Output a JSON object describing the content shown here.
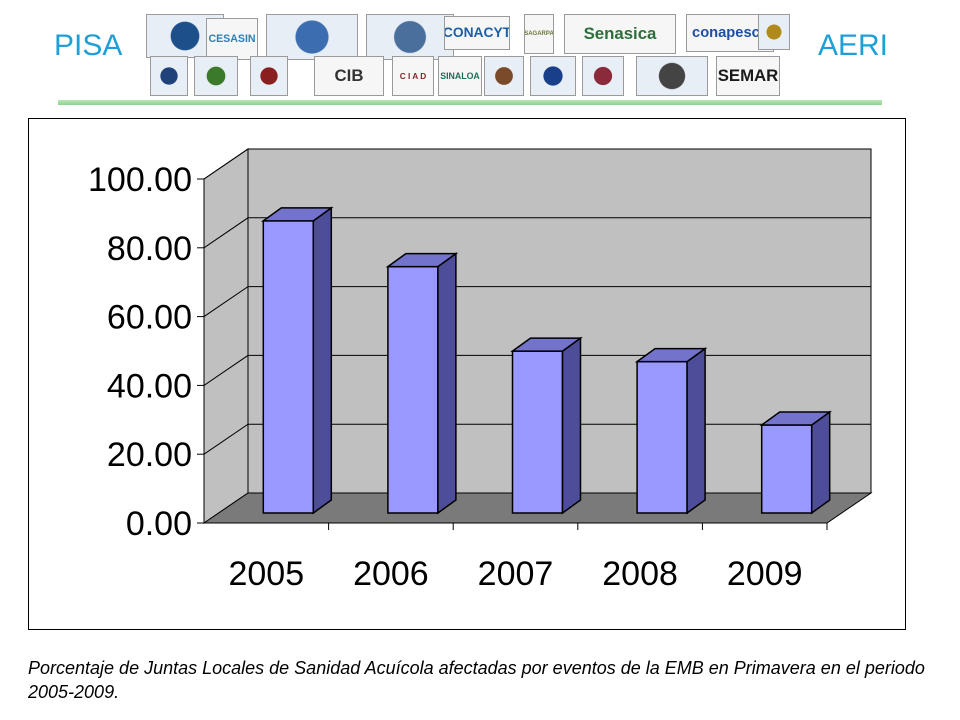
{
  "header": {
    "left_label": "PISA",
    "right_label": "AERI",
    "logos_row1": [
      {
        "name": "globe-swirl-logo",
        "text": ""
      },
      {
        "name": "cesasin-logo",
        "text": "CESASIN"
      },
      {
        "name": "comite-nayarit-logo",
        "text": ""
      },
      {
        "name": "comite-bcs-logo",
        "text": ""
      },
      {
        "name": "conacyt-logo",
        "text": "CONACYT"
      },
      {
        "name": "sagarpa-logo",
        "text": "SAGARPA"
      },
      {
        "name": "senasica-logo",
        "text": "Senasica"
      },
      {
        "name": "conapesca-logo",
        "text": "conapesca"
      },
      {
        "name": "emblem-logo",
        "text": ""
      }
    ],
    "logos_row2": [
      {
        "name": "unam-logo",
        "text": ""
      },
      {
        "name": "crest-green-logo",
        "text": ""
      },
      {
        "name": "crest-red-logo",
        "text": ""
      },
      {
        "name": "cib-logo",
        "text": "CIB"
      },
      {
        "name": "ciad-logo",
        "text": "C I A D"
      },
      {
        "name": "sinaloa-logo",
        "text": "SINALOA"
      },
      {
        "name": "figure-logo",
        "text": ""
      },
      {
        "name": "round-seal-logo",
        "text": ""
      },
      {
        "name": "round-crest-logo",
        "text": ""
      },
      {
        "name": "diagnostic-network-logo",
        "text": ""
      },
      {
        "name": "semar-logo",
        "text": "SEMAR"
      }
    ]
  },
  "chart_data": {
    "type": "bar",
    "categories": [
      "2005",
      "2006",
      "2007",
      "2008",
      "2009"
    ],
    "values": [
      83.0,
      70.0,
      46.0,
      43.0,
      25.0
    ],
    "ylim": [
      0,
      100
    ],
    "yticks": [
      "0.00",
      "20.00",
      "40.00",
      "60.00",
      "80.00",
      "100.00"
    ],
    "grid": true,
    "legend": "none",
    "style": "3d",
    "colors": {
      "bar_front": "#9999ff",
      "bar_side": "#4d4d99",
      "bar_top": "#7373cc",
      "wall": "#c0c0c0",
      "floor": "#7a7a7a",
      "outline": "#000000"
    }
  },
  "caption": "Porcentaje de Juntas Locales de Sanidad Acuícola afectadas por eventos de la EMB en Primavera en el periodo 2005-2009."
}
